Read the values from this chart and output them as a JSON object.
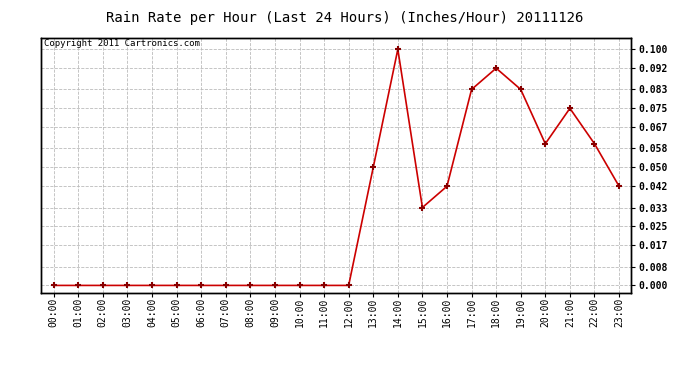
{
  "title": "Rain Rate per Hour (Last 24 Hours) (Inches/Hour) 20111126",
  "copyright": "Copyright 2011 Cartronics.com",
  "x_labels": [
    "00:00",
    "01:00",
    "02:00",
    "03:00",
    "04:00",
    "05:00",
    "06:00",
    "07:00",
    "08:00",
    "09:00",
    "10:00",
    "11:00",
    "12:00",
    "13:00",
    "14:00",
    "15:00",
    "16:00",
    "17:00",
    "18:00",
    "19:00",
    "20:00",
    "21:00",
    "22:00",
    "23:00"
  ],
  "x_values": [
    0,
    1,
    2,
    3,
    4,
    5,
    6,
    7,
    8,
    9,
    10,
    11,
    12,
    13,
    14,
    15,
    16,
    17,
    18,
    19,
    20,
    21,
    22,
    23
  ],
  "y_values": [
    0.0,
    0.0,
    0.0,
    0.0,
    0.0,
    0.0,
    0.0,
    0.0,
    0.0,
    0.0,
    0.0,
    0.0,
    0.0,
    0.05,
    0.1,
    0.033,
    0.042,
    0.083,
    0.092,
    0.083,
    0.06,
    0.075,
    0.06,
    0.042
  ],
  "y_ticks": [
    0.0,
    0.008,
    0.017,
    0.025,
    0.033,
    0.042,
    0.05,
    0.058,
    0.067,
    0.075,
    0.083,
    0.092,
    0.1
  ],
  "line_color": "#cc0000",
  "marker": "+",
  "marker_color": "#880000",
  "marker_size": 5,
  "marker_lw": 1.5,
  "grid_color": "#bbbbbb",
  "bg_color": "white",
  "title_fontsize": 10,
  "tick_fontsize": 7,
  "copyright_fontsize": 6.5,
  "ylim": [
    -0.003,
    0.105
  ]
}
